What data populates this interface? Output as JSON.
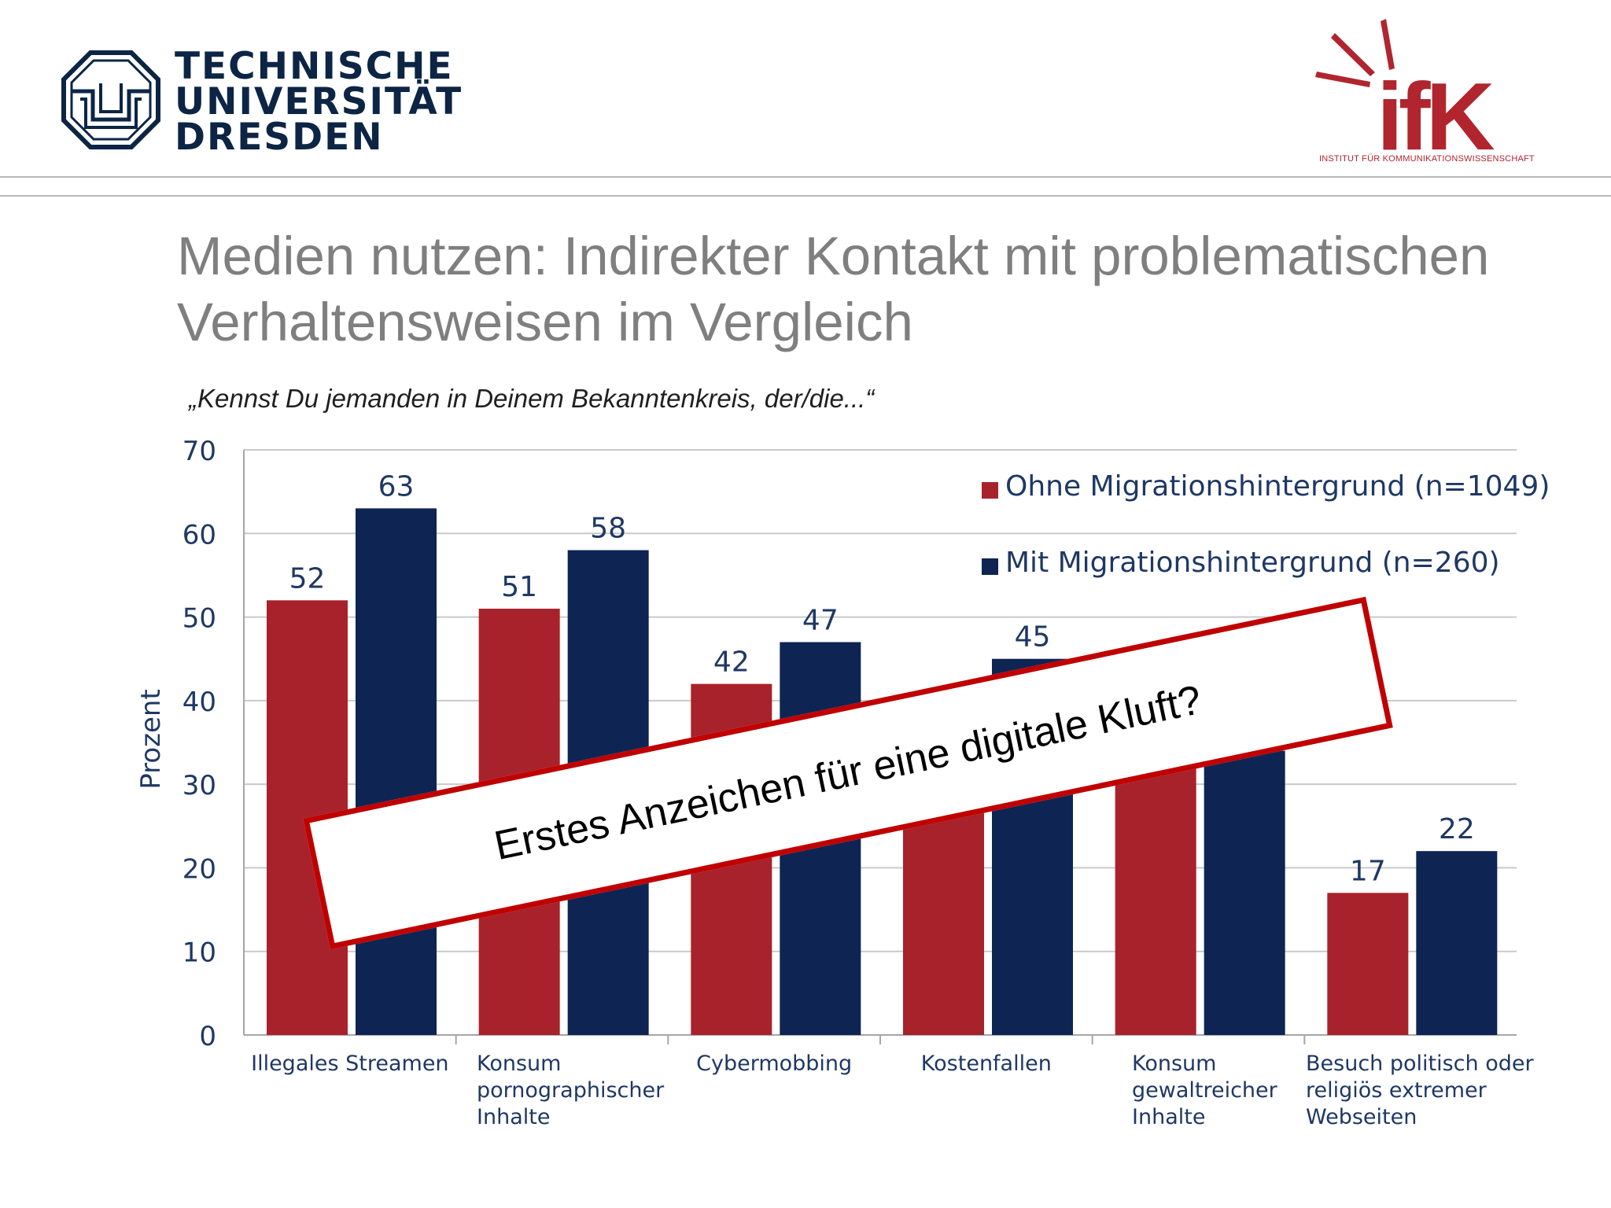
{
  "header": {
    "tud_logo_lines": [
      "TECHNISCHE",
      "UNIVERSITÄT",
      "DRESDEN"
    ],
    "ifk_logo_text": "ifK",
    "ifk_subtitle": "Institut für Kommunikationswissenschaft",
    "tud_logo_icon": "tu-dresden-emblem-icon",
    "ifk_logo_icon": "ifk-rays-logo-icon"
  },
  "slide": {
    "title": "Medien nutzen: Indirekter Kontakt mit problematischen Verhaltensweisen im Vergleich",
    "subtitle": "„Kennst Du jemanden in Deinem Bekanntenkreis, der/die...“",
    "stamp_text": "Erstes Anzeichen für eine digitale Kluft?"
  },
  "colors": {
    "series_ohne": "#a8222b",
    "series_mit": "#0e2452",
    "axis_text": "#1f3864",
    "grid": "#c9c9c9",
    "stamp_border": "#c00000",
    "title_gray": "#7f7f7f"
  },
  "chart_data": {
    "type": "bar",
    "ylabel": "Prozent",
    "ylim": [
      0,
      70
    ],
    "yticks": [
      0,
      10,
      20,
      30,
      40,
      50,
      60,
      70
    ],
    "grid": true,
    "legend_position": "top-right",
    "categories": [
      [
        "Illegales Streamen"
      ],
      [
        "Konsum",
        "pornographischer",
        "Inhalte"
      ],
      [
        "Cybermobbing"
      ],
      [
        "Kostenfallen"
      ],
      [
        "Konsum",
        "gewaltreicher",
        "Inhalte"
      ],
      [
        "Besuch politisch oder",
        "religiös extremer",
        "Webseiten"
      ]
    ],
    "series": [
      {
        "name": "Ohne Migrationshintergrund (n=1049)",
        "values": [
          52,
          51,
          42,
          37,
          37,
          17
        ],
        "labels": [
          "52",
          "51",
          "42",
          "",
          "",
          "17"
        ]
      },
      {
        "name": "Mit Migrationshintergrund (n=260)",
        "values": [
          63,
          58,
          47,
          45,
          34,
          22
        ],
        "labels": [
          "63",
          "58",
          "47",
          "45",
          "",
          "22"
        ]
      }
    ]
  }
}
